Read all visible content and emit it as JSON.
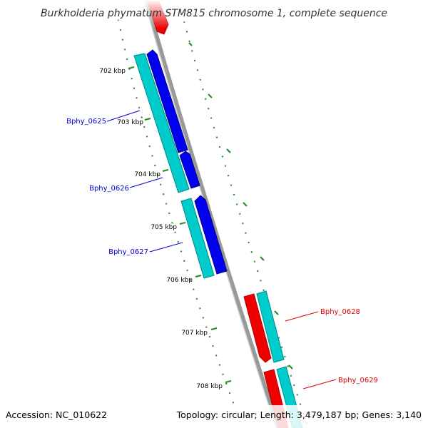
{
  "title": "Burkholderia phymatum STM815 chromosome 1, complete sequence",
  "footer": {
    "accession": "Accession: NC_010622",
    "topology": "Topology: circular; Length: 3,479,187 bp; Genes: 3,140"
  },
  "colors": {
    "forward_cds": "#0000ee",
    "reverse_cds": "#ee0000",
    "gene": "#00cccc",
    "backbone": "#999999",
    "ticks": "#228822",
    "forward_label": "#0000cc",
    "reverse_label": "#dd0000"
  },
  "scale": {
    "labels": [
      "702 kbp",
      "703 kbp",
      "704 kbp",
      "705 kbp",
      "706 kbp",
      "707 kbp",
      "708 kbp"
    ]
  },
  "genes": [
    {
      "name": "Bphy_0625",
      "strand": "forward"
    },
    {
      "name": "Bphy_0626",
      "strand": "forward"
    },
    {
      "name": "Bphy_0627",
      "strand": "forward"
    },
    {
      "name": "Bphy_0628",
      "strand": "reverse"
    },
    {
      "name": "Bphy_0629",
      "strand": "reverse"
    }
  ]
}
